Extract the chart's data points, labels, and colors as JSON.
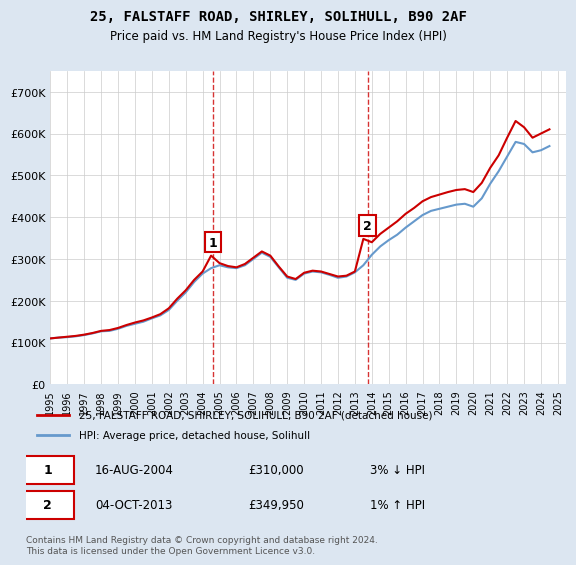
{
  "title": "25, FALSTAFF ROAD, SHIRLEY, SOLIHULL, B90 2AF",
  "subtitle": "Price paid vs. HM Land Registry's House Price Index (HPI)",
  "ylabel_ticks": [
    "£0",
    "£100K",
    "£200K",
    "£300K",
    "£400K",
    "£500K",
    "£600K",
    "£700K"
  ],
  "ylim": [
    0,
    750000
  ],
  "yticks": [
    0,
    100000,
    200000,
    300000,
    400000,
    500000,
    600000,
    700000
  ],
  "xlim_start": 1995.0,
  "xlim_end": 2025.5,
  "marker1_x": 2004.62,
  "marker1_y": 310000,
  "marker2_x": 2013.75,
  "marker2_y": 349950,
  "marker1_label": "1",
  "marker2_label": "2",
  "transaction1_date": "16-AUG-2004",
  "transaction1_price": "£310,000",
  "transaction1_hpi": "3% ↓ HPI",
  "transaction2_date": "04-OCT-2013",
  "transaction2_price": "£349,950",
  "transaction2_hpi": "1% ↑ HPI",
  "legend_line1": "25, FALSTAFF ROAD, SHIRLEY, SOLIHULL, B90 2AF (detached house)",
  "legend_line2": "HPI: Average price, detached house, Solihull",
  "line_color_price": "#cc0000",
  "line_color_hpi": "#6699cc",
  "background_color": "#dce6f1",
  "plot_bg_color": "#ffffff",
  "grid_color": "#cccccc",
  "footer": "Contains HM Land Registry data © Crown copyright and database right 2024.\nThis data is licensed under the Open Government Licence v3.0.",
  "hpi_data": {
    "years": [
      1995.0,
      1995.5,
      1996.0,
      1996.5,
      1997.0,
      1997.5,
      1998.0,
      1998.5,
      1999.0,
      1999.5,
      2000.0,
      2000.5,
      2001.0,
      2001.5,
      2002.0,
      2002.5,
      2003.0,
      2003.5,
      2004.0,
      2004.5,
      2005.0,
      2005.5,
      2006.0,
      2006.5,
      2007.0,
      2007.5,
      2008.0,
      2008.5,
      2009.0,
      2009.5,
      2010.0,
      2010.5,
      2011.0,
      2011.5,
      2012.0,
      2012.5,
      2013.0,
      2013.5,
      2014.0,
      2014.5,
      2015.0,
      2015.5,
      2016.0,
      2016.5,
      2017.0,
      2017.5,
      2018.0,
      2018.5,
      2019.0,
      2019.5,
      2020.0,
      2020.5,
      2021.0,
      2021.5,
      2022.0,
      2022.5,
      2023.0,
      2023.5,
      2024.0,
      2024.5
    ],
    "hpi_values": [
      110000,
      112000,
      113000,
      115000,
      118000,
      122000,
      127000,
      128000,
      133000,
      140000,
      145000,
      150000,
      158000,
      165000,
      178000,
      200000,
      220000,
      245000,
      265000,
      278000,
      285000,
      280000,
      278000,
      285000,
      300000,
      315000,
      305000,
      280000,
      255000,
      250000,
      265000,
      270000,
      268000,
      262000,
      255000,
      258000,
      268000,
      285000,
      310000,
      330000,
      345000,
      358000,
      375000,
      390000,
      405000,
      415000,
      420000,
      425000,
      430000,
      432000,
      425000,
      445000,
      480000,
      510000,
      545000,
      580000,
      575000,
      555000,
      560000,
      570000
    ],
    "price_values": [
      110000,
      112000,
      114000,
      116000,
      119000,
      123000,
      128000,
      130000,
      135000,
      142000,
      148000,
      153000,
      160000,
      168000,
      182000,
      205000,
      225000,
      250000,
      270000,
      308000,
      290000,
      283000,
      280000,
      288000,
      303000,
      318000,
      308000,
      282000,
      258000,
      252000,
      267000,
      272000,
      270000,
      264000,
      258000,
      260000,
      270000,
      348000,
      340000,
      360000,
      375000,
      390000,
      408000,
      422000,
      438000,
      448000,
      454000,
      460000,
      465000,
      467000,
      460000,
      482000,
      518000,
      548000,
      590000,
      630000,
      615000,
      590000,
      600000,
      610000
    ]
  }
}
